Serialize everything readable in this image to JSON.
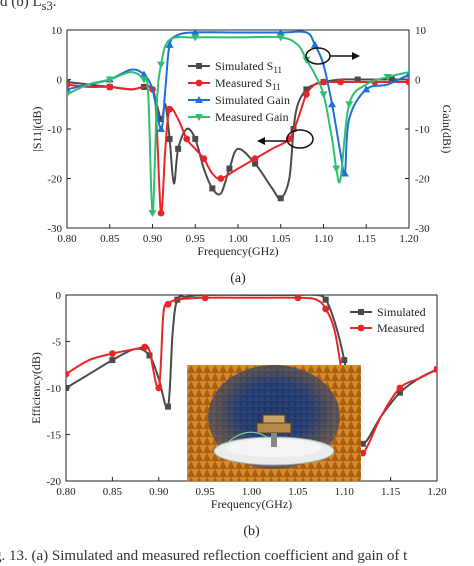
{
  "caption_top": "d (b) L",
  "caption_top_sub": "s3",
  "caption_top_end": ".",
  "caption_bottom": "g. 13.   (a) Simulated and measured reflection coefficient and gain of t",
  "colors": {
    "sim_s11": "#4a4a4a",
    "meas_s11": "#e8262a",
    "sim_gain": "#1f6fd6",
    "meas_gain": "#2fbf71"
  },
  "chart_data": [
    {
      "type": "line",
      "panel_label": "(a)",
      "xlabel": "Frequency(GHz)",
      "ylabel_left": "|S11|(dB)",
      "ylabel_right": "Gain(dBi)",
      "xlim": [
        0.8,
        1.2
      ],
      "ylim_left": [
        -30,
        10
      ],
      "ylim_right": [
        -30,
        10
      ],
      "x_ticks": [
        "0.80",
        "0.85",
        "0.90",
        "0.95",
        "1.00",
        "1.05",
        "1.10",
        "1.15",
        "1.20"
      ],
      "y_ticks_left": [
        "10",
        "0",
        "-10",
        "-20",
        "-30"
      ],
      "y_ticks_right": [
        "10",
        "0",
        "-10",
        "-20",
        "-30"
      ],
      "legend": [
        "Simulated S11",
        "Measured S11",
        "Simulated Gain",
        "Measured Gain"
      ],
      "series": [
        {
          "name": "Simulated S11",
          "axis": "left",
          "color": "#4a4a4a",
          "marker": "square",
          "x": [
            0.8,
            0.825,
            0.85,
            0.875,
            0.89,
            0.9,
            0.91,
            0.915,
            0.92,
            0.925,
            0.93,
            0.94,
            0.95,
            0.96,
            0.97,
            0.98,
            0.99,
            1.0,
            1.02,
            1.04,
            1.05,
            1.06,
            1.065,
            1.07,
            1.08,
            1.09,
            1.1,
            1.12,
            1.14,
            1.16,
            1.18,
            1.2
          ],
          "y": [
            -0.5,
            -1,
            -1.5,
            -2,
            -1.5,
            -2,
            -8,
            -5,
            -12,
            -21,
            -14,
            -10,
            -12,
            -18,
            -22,
            -23,
            -18,
            -14,
            -17,
            -22,
            -24,
            -20,
            -10,
            -5,
            -2,
            -1,
            -0.5,
            0,
            0,
            0,
            0,
            0
          ]
        },
        {
          "name": "Measured S11",
          "axis": "left",
          "color": "#e8262a",
          "marker": "circle",
          "x": [
            0.8,
            0.825,
            0.85,
            0.875,
            0.9,
            0.905,
            0.91,
            0.915,
            0.92,
            0.93,
            0.94,
            0.95,
            0.96,
            0.97,
            0.98,
            1.0,
            1.02,
            1.04,
            1.06,
            1.07,
            1.08,
            1.09,
            1.1,
            1.11,
            1.12,
            1.14,
            1.16,
            1.18,
            1.2
          ],
          "y": [
            -1,
            -1.5,
            -1.5,
            -2,
            -2,
            -10,
            -27,
            -14,
            -6,
            -8,
            -12,
            -14,
            -16,
            -19,
            -20,
            -18,
            -16,
            -14,
            -12,
            -8,
            -3,
            -1,
            -0.5,
            -0.5,
            -0.5,
            -0.5,
            -0.5,
            -0.5,
            -0.5
          ]
        },
        {
          "name": "Simulated Gain",
          "axis": "right",
          "color": "#1f6fd6",
          "marker": "triangle-up",
          "x": [
            0.8,
            0.825,
            0.85,
            0.875,
            0.89,
            0.9,
            0.91,
            0.915,
            0.92,
            0.93,
            0.95,
            1.0,
            1.05,
            1.08,
            1.09,
            1.1,
            1.11,
            1.12,
            1.125,
            1.13,
            1.15,
            1.175,
            1.2
          ],
          "y": [
            -2,
            -1,
            0,
            2,
            1,
            -2,
            -10,
            -2,
            7,
            9,
            9.5,
            9.5,
            9.5,
            9.5,
            7,
            3,
            -5,
            -15,
            -19,
            -8,
            -2,
            -1,
            1
          ]
        },
        {
          "name": "Measured Gain",
          "axis": "right",
          "color": "#2fbf71",
          "marker": "triangle-down",
          "x": [
            0.8,
            0.825,
            0.85,
            0.875,
            0.89,
            0.895,
            0.9,
            0.905,
            0.91,
            0.92,
            0.95,
            1.0,
            1.05,
            1.07,
            1.08,
            1.09,
            1.1,
            1.11,
            1.115,
            1.12,
            1.13,
            1.15,
            1.175,
            1.2
          ],
          "y": [
            -3,
            -1,
            0,
            1.5,
            0,
            -3,
            -27,
            -5,
            3,
            8,
            8.5,
            8.5,
            8.5,
            7,
            4,
            1,
            -3,
            -12,
            -18,
            -20,
            -5,
            -1,
            0.5,
            1.5
          ]
        }
      ]
    },
    {
      "type": "line",
      "panel_label": "(b)",
      "xlabel": "Frequency(GHz)",
      "ylabel": "Efficiency(dB)",
      "xlim": [
        0.8,
        1.2
      ],
      "ylim": [
        -20,
        0
      ],
      "x_ticks": [
        "0.80",
        "0.85",
        "0.90",
        "0.95",
        "1.00",
        "1.05",
        "1.10",
        "1.15",
        "1.20"
      ],
      "y_ticks": [
        "0",
        "-5",
        "-10",
        "-15",
        "-20"
      ],
      "legend": [
        "Simulated",
        "Measured"
      ],
      "series": [
        {
          "name": "Simulated",
          "color": "#4a4a4a",
          "marker": "square",
          "x": [
            0.8,
            0.825,
            0.85,
            0.875,
            0.89,
            0.9,
            0.91,
            0.915,
            0.92,
            0.93,
            0.95,
            1.0,
            1.05,
            1.07,
            1.08,
            1.09,
            1.1,
            1.11,
            1.12,
            1.14,
            1.16,
            1.18,
            1.2
          ],
          "y": [
            -10,
            -8.5,
            -7,
            -5.8,
            -6.5,
            -9,
            -12,
            -4,
            -0.5,
            -0.2,
            0,
            0,
            0,
            0,
            -0.5,
            -3,
            -7,
            -13,
            -16,
            -13,
            -10.5,
            -9,
            -8
          ]
        },
        {
          "name": "Measured",
          "color": "#e8262a",
          "marker": "circle",
          "x": [
            0.8,
            0.825,
            0.85,
            0.875,
            0.885,
            0.89,
            0.9,
            0.905,
            0.91,
            0.92,
            0.95,
            1.0,
            1.05,
            1.07,
            1.08,
            1.09,
            1.1,
            1.11,
            1.12,
            1.14,
            1.16,
            1.18,
            1.2
          ],
          "y": [
            -8.5,
            -7,
            -6.3,
            -5.8,
            -5.6,
            -6,
            -10,
            -2,
            -1,
            -0.5,
            -0.3,
            -0.3,
            -0.3,
            -0.5,
            -1.5,
            -4,
            -10,
            -15,
            -17,
            -13,
            -10,
            -9,
            -8
          ]
        }
      ]
    }
  ]
}
